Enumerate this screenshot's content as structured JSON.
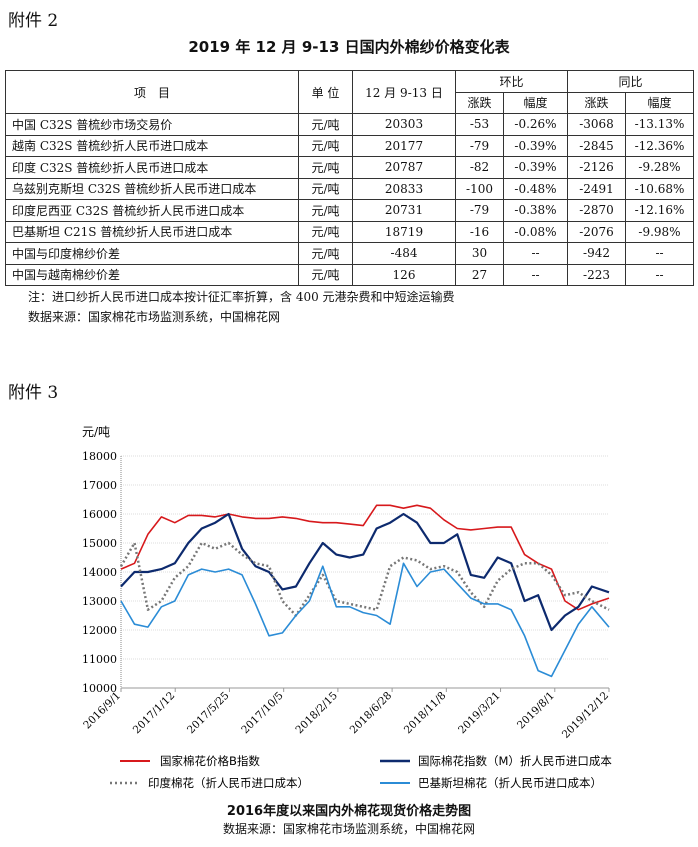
{
  "attachment2": "附件 2",
  "table_title": "2019 年 12 月 9-13 日国内外棉纱价格变化表",
  "table": {
    "headers": {
      "item": "项　目",
      "unit": "单 位",
      "date": "12 月 9-13 日",
      "mom": "环比",
      "yoy": "同比",
      "change": "涨跌",
      "pct": "幅度"
    },
    "rows": [
      [
        "中国 C32S 普梳纱市场交易价",
        "元/吨",
        "20303",
        "-53",
        "-0.26%",
        "-3068",
        "-13.13%"
      ],
      [
        "越南 C32S 普梳纱折人民币进口成本",
        "元/吨",
        "20177",
        "-79",
        "-0.39%",
        "-2845",
        "-12.36%"
      ],
      [
        "印度 C32S 普梳纱折人民币进口成本",
        "元/吨",
        "20787",
        "-82",
        "-0.39%",
        "-2126",
        "-9.28%"
      ],
      [
        "乌兹别克斯坦 C32S 普梳纱折人民币进口成本",
        "元/吨",
        "20833",
        "-100",
        "-0.48%",
        "-2491",
        "-10.68%"
      ],
      [
        "印度尼西亚 C32S 普梳纱折人民币进口成本",
        "元/吨",
        "20731",
        "-79",
        "-0.38%",
        "-2870",
        "-12.16%"
      ],
      [
        "巴基斯坦 C21S 普梳纱折人民币进口成本",
        "元/吨",
        "18719",
        "-16",
        "-0.08%",
        "-2076",
        "-9.98%"
      ],
      [
        "中国与印度棉纱价差",
        "元/吨",
        "-484",
        "30",
        "--",
        "-942",
        "--"
      ],
      [
        "中国与越南棉纱价差",
        "元/吨",
        "126",
        "27",
        "--",
        "-223",
        "--"
      ]
    ]
  },
  "note": "注：进口纱折人民币进口成本按计征汇率折算，含 400 元港杂费和中短途运输费",
  "source1": "数据来源：国家棉花市场监测系统，中国棉花网",
  "attachment3": "附件 3",
  "chart_data": {
    "type": "line",
    "title": "2016年度以来国内外棉花现货价格走势图",
    "source": "数据来源：国家棉花市场监测系统，中国棉花网",
    "ylabel": "元/吨",
    "ylim": [
      10000,
      18000
    ],
    "yticks": [
      10000,
      11000,
      12000,
      13000,
      14000,
      15000,
      16000,
      17000,
      18000
    ],
    "xticks": [
      "2016/9/1",
      "2017/1/12",
      "2017/5/25",
      "2017/10/5",
      "2018/2/15",
      "2018/6/28",
      "2018/11/8",
      "2019/3/21",
      "2019/8/1",
      "2019/12/12"
    ],
    "grid": true,
    "legend": "bottom",
    "x": [
      "2016-09-01",
      "2016-10-04",
      "2016-11-06",
      "2016-12-09",
      "2017-01-11",
      "2017-02-13",
      "2017-03-18",
      "2017-04-20",
      "2017-05-23",
      "2017-06-25",
      "2017-07-28",
      "2017-08-30",
      "2017-10-02",
      "2017-11-04",
      "2017-12-07",
      "2018-01-09",
      "2018-02-11",
      "2018-03-16",
      "2018-04-18",
      "2018-05-21",
      "2018-06-23",
      "2018-07-26",
      "2018-08-28",
      "2018-09-30",
      "2018-11-02",
      "2018-12-05",
      "2019-01-07",
      "2019-02-09",
      "2019-03-14",
      "2019-04-16",
      "2019-05-19",
      "2019-06-21",
      "2019-07-24",
      "2019-08-26",
      "2019-09-28",
      "2019-10-31",
      "2019-12-12"
    ],
    "series": [
      {
        "name": "国家棉花价格B指数",
        "color": "#d7191c",
        "style": "solid",
        "values": [
          14100,
          14300,
          15300,
          15900,
          15700,
          15950,
          15950,
          15900,
          16000,
          15900,
          15850,
          15850,
          15900,
          15850,
          15750,
          15700,
          15700,
          15650,
          15600,
          16300,
          16300,
          16200,
          16300,
          16200,
          15800,
          15500,
          15450,
          15500,
          15550,
          15550,
          14600,
          14300,
          14100,
          13000,
          12700,
          12900,
          13100
        ]
      },
      {
        "name": "国际棉花指数（M）折人民币进口成本",
        "color": "#0d2a6e",
        "style": "solid",
        "values": [
          13500,
          14000,
          14000,
          14100,
          14300,
          15000,
          15500,
          15700,
          16000,
          14800,
          14200,
          14000,
          13400,
          13500,
          14300,
          15000,
          14600,
          14500,
          14600,
          15500,
          15700,
          16000,
          15700,
          15000,
          15000,
          15300,
          13900,
          13800,
          14500,
          14300,
          13000,
          13200,
          12000,
          12500,
          12800,
          13500,
          13300
        ]
      },
      {
        "name": "印度棉花（折人民币进口成本）",
        "color": "#777777",
        "style": "dotted",
        "values": [
          14200,
          15000,
          12700,
          13000,
          13800,
          14200,
          15000,
          14800,
          15000,
          14600,
          14300,
          14200,
          13000,
          12500,
          13200,
          13900,
          13000,
          12900,
          12800,
          12700,
          14200,
          14500,
          14400,
          14100,
          14200,
          14000,
          13300,
          12800,
          13700,
          14100,
          14300,
          14300,
          13900,
          13200,
          13300,
          13000,
          12700
        ]
      },
      {
        "name": "巴基斯坦棉花（折人民币进口成本）",
        "color": "#2b8cd6",
        "style": "solid",
        "values": [
          13000,
          12200,
          12100,
          12800,
          13000,
          13900,
          14100,
          14000,
          14100,
          13900,
          12900,
          11800,
          11900,
          12500,
          13000,
          14200,
          12800,
          12800,
          12600,
          12500,
          12200,
          14300,
          13500,
          14000,
          14100,
          13600,
          13100,
          12900,
          12900,
          12700,
          11800,
          10600,
          10400,
          11300,
          12200,
          12800,
          12100
        ]
      }
    ]
  }
}
